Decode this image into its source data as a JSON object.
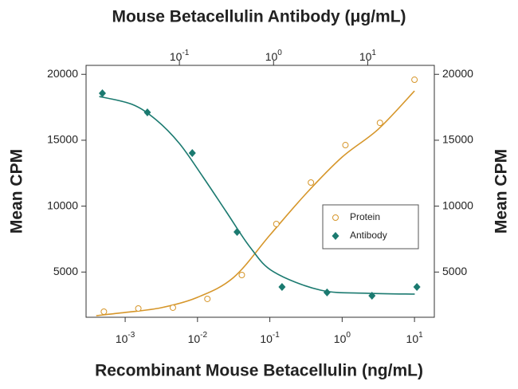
{
  "chart_data": {
    "type": "scatter",
    "title": "Mouse Betacellulin Antibody (μg/mL)",
    "xlabel": "Recombinant Mouse Betacellulin (ng/mL)",
    "ylabel": "Mean CPM",
    "y2label": "Mean CPM",
    "xscale": "log",
    "xlim": [
      0.000288,
      18.8
    ],
    "xticks": [
      {
        "value": 0.001,
        "label": "10",
        "power": "-3"
      },
      {
        "value": 0.01,
        "label": "10",
        "power": "-2"
      },
      {
        "value": 0.1,
        "label": "10",
        "power": "-1"
      },
      {
        "value": 1,
        "label": "10",
        "power": "0"
      },
      {
        "value": 10,
        "label": "10",
        "power": "1"
      }
    ],
    "x2lim": [
      0.0102,
      51
    ],
    "x2ticks": [
      {
        "value": 0.1,
        "label": "10",
        "power": "-1"
      },
      {
        "value": 1,
        "label": "10",
        "power": "0"
      },
      {
        "value": 10,
        "label": "10",
        "power": "1"
      }
    ],
    "ylim": [
      1570,
      20680
    ],
    "yticks": [
      5000,
      10000,
      15000,
      20000
    ],
    "y2lim": [
      1570,
      20680
    ],
    "y2ticks": [
      5000,
      10000,
      15000,
      20000
    ],
    "legend": "center right",
    "series": [
      {
        "name": "Protein",
        "color": "#d6962a",
        "marker": "circle",
        "xaxis": "x",
        "x": [
          0.000508,
          0.00152,
          0.00457,
          0.0137,
          0.041,
          0.123,
          0.37,
          1.11,
          3.33,
          10
        ],
        "values": [
          1995,
          2237,
          2297,
          2963,
          4776,
          8646,
          11790,
          14630,
          16320,
          19590
        ],
        "curve_x": [
          0.000398,
          0.001,
          0.00316,
          0.01,
          0.0316,
          0.1,
          0.316,
          1,
          3.16,
          10
        ],
        "curve_values": [
          1693,
          1935,
          2297,
          3083,
          4595,
          7799,
          10943,
          13724,
          15840,
          18742
        ]
      },
      {
        "name": "Antibody",
        "color": "#1b7a70",
        "marker": "diamond",
        "xaxis": "x2",
        "x": [
          0.0152,
          0.0457,
          0.137,
          0.41,
          1.23,
          3.7,
          11.1,
          33.3
        ],
        "values": [
          18560,
          17110,
          14030,
          8040,
          3870,
          3450,
          3200,
          3870
        ],
        "curve_x": [
          0.0141,
          0.0316,
          0.0562,
          0.1,
          0.178,
          0.316,
          0.562,
          1,
          3.16,
          10,
          31.6
        ],
        "curve_values": [
          18319,
          17715,
          16566,
          14752,
          12213,
          9553,
          6892,
          5018,
          3628,
          3386,
          3325
        ]
      }
    ]
  }
}
